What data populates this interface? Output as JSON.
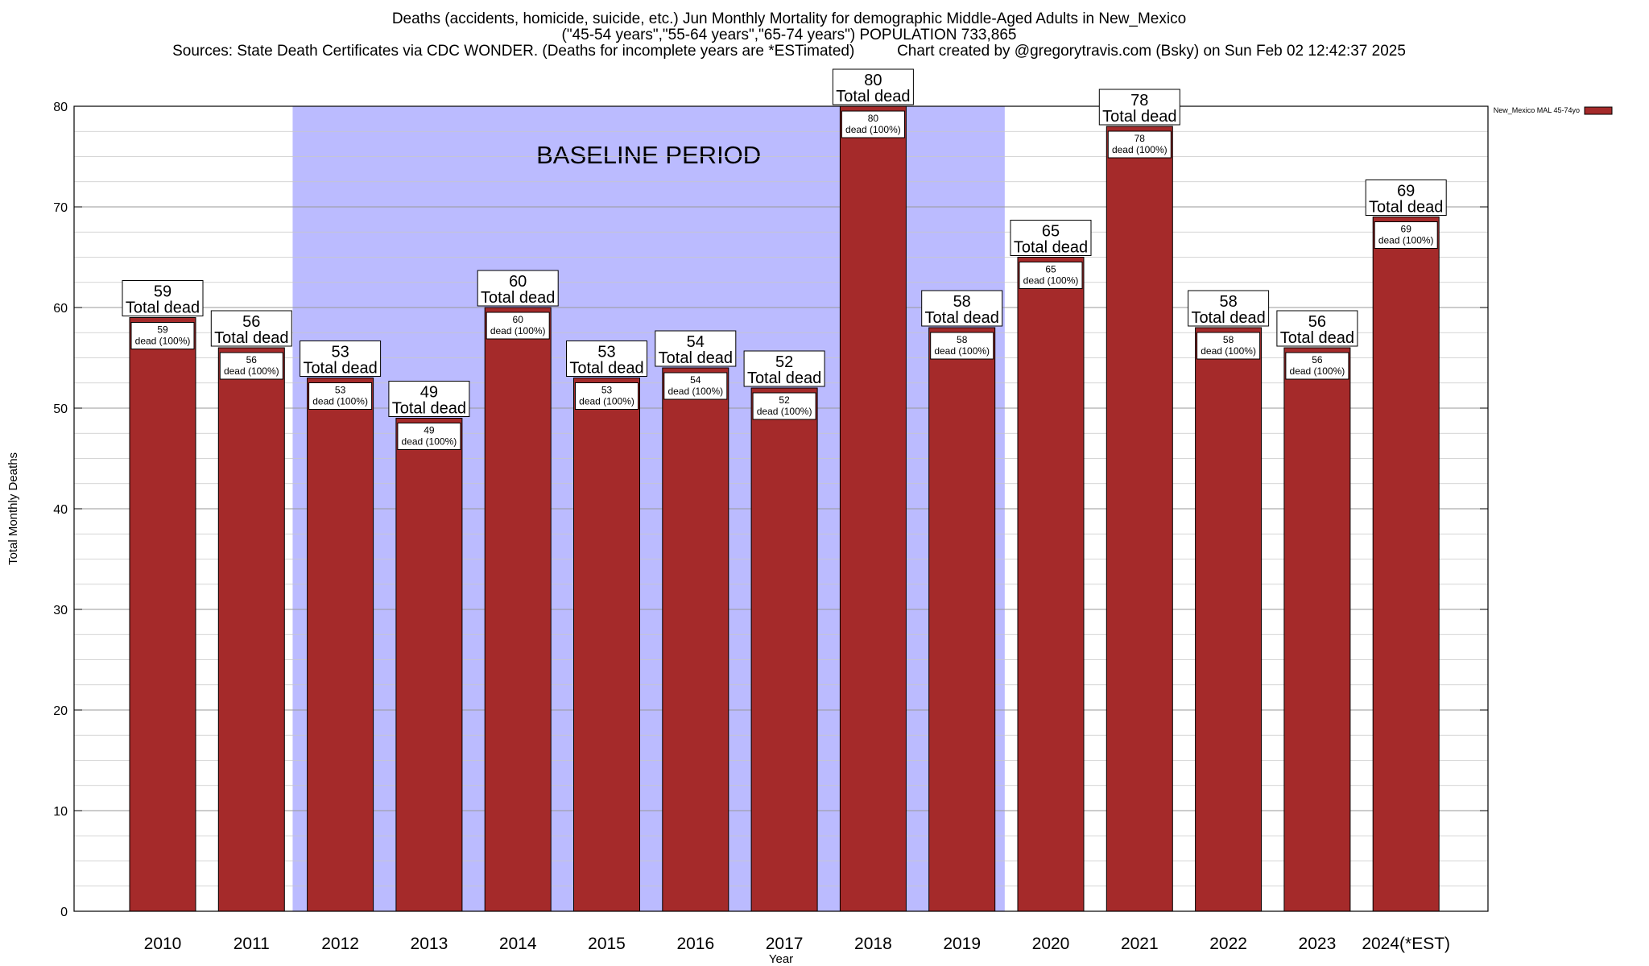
{
  "header": {
    "title_line1": "Deaths (accidents, homicide, suicide, etc.) Jun Monthly Mortality for demographic Middle-Aged Adults in New_Mexico",
    "title_line2": "(\"45-54 years\",\"55-64 years\",\"65-74 years\") POPULATION 733,865",
    "title_line3": "Sources: State Death Certificates via CDC WONDER. (Deaths for incomplete years are *ESTimated)          Chart created by @gregorytravis.com (Bsky) on Sun Feb 02 12:42:37 2025"
  },
  "chart_data": {
    "type": "bar",
    "title": "Deaths (accidents, homicide, suicide, etc.) Jun Monthly Mortality for demographic Middle-Aged Adults in New_Mexico",
    "xlabel": "Year",
    "ylabel": "Total Monthly Deaths",
    "ylim": [
      0,
      80
    ],
    "y_ticks": [
      0,
      10,
      20,
      30,
      40,
      50,
      60,
      70,
      80
    ],
    "grid": true,
    "legend_position": "top-right",
    "categories": [
      "2010",
      "2011",
      "2012",
      "2013",
      "2014",
      "2015",
      "2016",
      "2017",
      "2018",
      "2019",
      "2020",
      "2021",
      "2022",
      "2023",
      "2024(*EST)"
    ],
    "series": [
      {
        "name": "New_Mexico MAL 45-74yo",
        "color": "#a52a2a",
        "values": [
          59,
          56,
          53,
          49,
          60,
          53,
          54,
          52,
          80,
          58,
          65,
          78,
          58,
          56,
          69
        ]
      }
    ],
    "top_label_suffix": "Total dead",
    "inner_label_suffix": "dead (100%)",
    "baseline_period": {
      "label": "BASELINE PERIOD",
      "start_category": "2012",
      "end_category": "2019",
      "color": "#bbbbff"
    }
  }
}
